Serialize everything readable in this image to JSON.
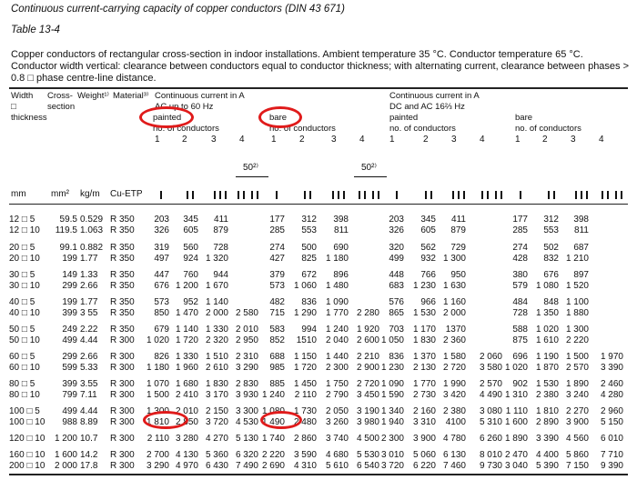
{
  "title": "Continuous current-carrying capacity of copper conductors (DIN 43 671)",
  "table_label": "Table 13-4",
  "description": "Copper conductors of rectangular cross-section in indoor installations. Ambient temperature 35 °C. Conductor temperature 65 °C. Conductor width vertical: clearance between conductors equal to conductor thickness; with alternating current, clearance between phases > 0.8 □ phase centre-line distance.",
  "header": {
    "width": [
      "Width",
      "□",
      "thickness"
    ],
    "cross_section": [
      "Cross-",
      "section"
    ],
    "weight": "Weight¹⁾",
    "material": "Material³⁾",
    "ac_group": [
      "Continuous current in A",
      "AC up to 60 Hz"
    ],
    "dc_group": [
      "Continuous current in A",
      "DC and AC 16⅔ Hz"
    ],
    "painted": "painted",
    "bare": "bare",
    "no_conductors": "no. of conductors",
    "conductor_numbers": [
      "1",
      "2",
      "3",
      "4"
    ],
    "spacing_label": "50²⁾",
    "units": {
      "width": "mm",
      "cross_section": "mm²",
      "weight": "kg/m",
      "material": "Cu-ETP"
    }
  },
  "highlight_color": "#e01b1b",
  "highlighted": [
    "painted",
    "bare",
    "1 810",
    "1 490"
  ],
  "rows": [
    {
      "size": "12 □ 5",
      "area": "59.5",
      "weight": "0.529",
      "material": "R 350",
      "ac_painted": [
        "203",
        "345",
        "411",
        ""
      ],
      "ac_bare": [
        "177",
        "312",
        "398",
        ""
      ],
      "dc_painted": [
        "203",
        "345",
        "411",
        ""
      ],
      "dc_bare": [
        "177",
        "312",
        "398",
        ""
      ]
    },
    {
      "size": "12 □ 10",
      "area": "119.5",
      "weight": "1.063",
      "material": "R 350",
      "ac_painted": [
        "326",
        "605",
        "879",
        ""
      ],
      "ac_bare": [
        "285",
        "553",
        "811",
        ""
      ],
      "dc_painted": [
        "326",
        "605",
        "879",
        ""
      ],
      "dc_bare": [
        "285",
        "553",
        "811",
        ""
      ]
    },
    {
      "size": "20 □ 5",
      "area": "99.1",
      "weight": "0.882",
      "material": "R 350",
      "ac_painted": [
        "319",
        "560",
        "728",
        ""
      ],
      "ac_bare": [
        "274",
        "500",
        "690",
        ""
      ],
      "dc_painted": [
        "320",
        "562",
        "729",
        ""
      ],
      "dc_bare": [
        "274",
        "502",
        "687",
        ""
      ]
    },
    {
      "size": "20 □ 10",
      "area": "199",
      "weight": "1.77",
      "material": "R 350",
      "ac_painted": [
        "497",
        "924",
        "1 320",
        ""
      ],
      "ac_bare": [
        "427",
        "825",
        "1 180",
        ""
      ],
      "dc_painted": [
        "499",
        "932",
        "1 300",
        ""
      ],
      "dc_bare": [
        "428",
        "832",
        "1 210",
        ""
      ]
    },
    {
      "size": "30 □ 5",
      "area": "149",
      "weight": "1.33",
      "material": "R 350",
      "ac_painted": [
        "447",
        "760",
        "944",
        ""
      ],
      "ac_bare": [
        "379",
        "672",
        "896",
        ""
      ],
      "dc_painted": [
        "448",
        "766",
        "950",
        ""
      ],
      "dc_bare": [
        "380",
        "676",
        "897",
        ""
      ]
    },
    {
      "size": "30 □ 10",
      "area": "299",
      "weight": "2.66",
      "material": "R 350",
      "ac_painted": [
        "676",
        "1 200",
        "1 670",
        ""
      ],
      "ac_bare": [
        "573",
        "1 060",
        "1 480",
        ""
      ],
      "dc_painted": [
        "683",
        "1 230",
        "1 630",
        ""
      ],
      "dc_bare": [
        "579",
        "1 080",
        "1 520",
        ""
      ]
    },
    {
      "size": "40 □ 5",
      "area": "199",
      "weight": "1.77",
      "material": "R 350",
      "ac_painted": [
        "573",
        "952",
        "1 140",
        ""
      ],
      "ac_bare": [
        "482",
        "836",
        "1 090",
        ""
      ],
      "dc_painted": [
        "576",
        "966",
        "1 160",
        ""
      ],
      "dc_bare": [
        "484",
        "848",
        "1 100",
        ""
      ]
    },
    {
      "size": "40 □ 10",
      "area": "399",
      "weight": "3 55",
      "material": "R 350",
      "ac_painted": [
        "850",
        "1 470",
        "2 000",
        "2 580"
      ],
      "ac_bare": [
        "715",
        "1 290",
        "1 770",
        "2 280"
      ],
      "dc_painted": [
        "865",
        "1 530",
        "2 000",
        ""
      ],
      "dc_bare": [
        "728",
        "1 350",
        "1 880",
        ""
      ]
    },
    {
      "size": "50 □ 5",
      "area": "249",
      "weight": "2.22",
      "material": "R 350",
      "ac_painted": [
        "679",
        "1 140",
        "1 330",
        "2 010"
      ],
      "ac_bare": [
        "583",
        "994",
        "1 240",
        "1 920"
      ],
      "dc_painted": [
        "703",
        "1 170",
        "1370",
        ""
      ],
      "dc_bare": [
        "588",
        "1 020",
        "1 300",
        ""
      ]
    },
    {
      "size": "50 □ 10",
      "area": "499",
      "weight": "4.44",
      "material": "R 300",
      "ac_painted": [
        "1 020",
        "1 720",
        "2 320",
        "2 950"
      ],
      "ac_bare": [
        "852",
        "1510",
        "2 040",
        "2 600"
      ],
      "dc_painted": [
        "1 050",
        "1 830",
        "2 360",
        ""
      ],
      "dc_bare": [
        "875",
        "1 610",
        "2 220",
        ""
      ]
    },
    {
      "size": "60 □ 5",
      "area": "299",
      "weight": "2.66",
      "material": "R 300",
      "ac_painted": [
        "826",
        "1 330",
        "1 510",
        "2 310"
      ],
      "ac_bare": [
        "688",
        "1 150",
        "1 440",
        "2 210"
      ],
      "dc_painted": [
        "836",
        "1 370",
        "1 580",
        "2 060"
      ],
      "dc_bare": [
        "696",
        "1 190",
        "1 500",
        "1 970"
      ]
    },
    {
      "size": "60 □ 10",
      "area": "599",
      "weight": "5.33",
      "material": "R 300",
      "ac_painted": [
        "1 180",
        "1 960",
        "2 610",
        "3 290"
      ],
      "ac_bare": [
        "985",
        "1 720",
        "2 300",
        "2 900"
      ],
      "dc_painted": [
        "1 230",
        "2 130",
        "2 720",
        "3 580"
      ],
      "dc_bare": [
        "1 020",
        "1 870",
        "2 570",
        "3 390"
      ]
    },
    {
      "size": "80 □ 5",
      "area": "399",
      "weight": "3.55",
      "material": "R 300",
      "ac_painted": [
        "1 070",
        "1 680",
        "1 830",
        "2 830"
      ],
      "ac_bare": [
        "885",
        "1 450",
        "1 750",
        "2 720"
      ],
      "dc_painted": [
        "1 090",
        "1 770",
        "1 990",
        "2 570"
      ],
      "dc_bare": [
        "902",
        "1 530",
        "1 890",
        "2 460"
      ]
    },
    {
      "size": "80 □ 10",
      "area": "799",
      "weight": "7.11",
      "material": "R 300",
      "ac_painted": [
        "1 500",
        "2 410",
        "3 170",
        "3 930"
      ],
      "ac_bare": [
        "1 240",
        "2 110",
        "2 790",
        "3 450"
      ],
      "dc_painted": [
        "1 590",
        "2 730",
        "3 420",
        "4 490"
      ],
      "dc_bare": [
        "1 310",
        "2 380",
        "3 240",
        "4 280"
      ]
    },
    {
      "size": "100 □ 5",
      "area": "499",
      "weight": "4.44",
      "material": "R 300",
      "ac_painted": [
        "1 300",
        "2 010",
        "2 150",
        "3 300"
      ],
      "ac_bare": [
        "1 080",
        "1 730",
        "2 050",
        "3 190"
      ],
      "dc_painted": [
        "1 340",
        "2 160",
        "2 380",
        "3 080"
      ],
      "dc_bare": [
        "1 110",
        "1 810",
        "2 270",
        "2 960"
      ]
    },
    {
      "size": "100 □ 10",
      "area": "988",
      "weight": "8.89",
      "material": "R 300",
      "ac_painted": [
        "1 810",
        "2 850",
        "3 720",
        "4 530"
      ],
      "ac_bare": [
        "1 490",
        "2 480",
        "3 260",
        "3 980"
      ],
      "dc_painted": [
        "1 940",
        "3 310",
        "4100",
        "5 310"
      ],
      "dc_bare": [
        "1 600",
        "2 890",
        "3 900",
        "5 150"
      ]
    },
    {
      "size": "120 □ 10",
      "area": "1 200",
      "weight": "10.7",
      "material": "R 300",
      "ac_painted": [
        "2 110",
        "3 280",
        "4 270",
        "5 130"
      ],
      "ac_bare": [
        "1 740",
        "2 860",
        "3 740",
        "4 500"
      ],
      "dc_painted": [
        "2 300",
        "3 900",
        "4 780",
        "6 260"
      ],
      "dc_bare": [
        "1 890",
        "3 390",
        "4 560",
        "6 010"
      ]
    },
    {
      "size": "160 □ 10",
      "area": "1 600",
      "weight": "14.2",
      "material": "R 300",
      "ac_painted": [
        "2 700",
        "4 130",
        "5 360",
        "6 320"
      ],
      "ac_bare": [
        "2 220",
        "3 590",
        "4 680",
        "5 530"
      ],
      "dc_painted": [
        "3 010",
        "5 060",
        "6 130",
        "8 010"
      ],
      "dc_bare": [
        "2 470",
        "4 400",
        "5 860",
        "7 710"
      ]
    },
    {
      "size": "200 □ 10",
      "area": "2 000",
      "weight": "17.8",
      "material": "R 300",
      "ac_painted": [
        "3 290",
        "4 970",
        "6 430",
        "7 490"
      ],
      "ac_bare": [
        "2 690",
        "4 310",
        "5 610",
        "6 540"
      ],
      "dc_painted": [
        "3 720",
        "6 220",
        "7 460",
        "9 730"
      ],
      "dc_bare": [
        "3 040",
        "5 390",
        "7 150",
        "9 390"
      ]
    }
  ]
}
